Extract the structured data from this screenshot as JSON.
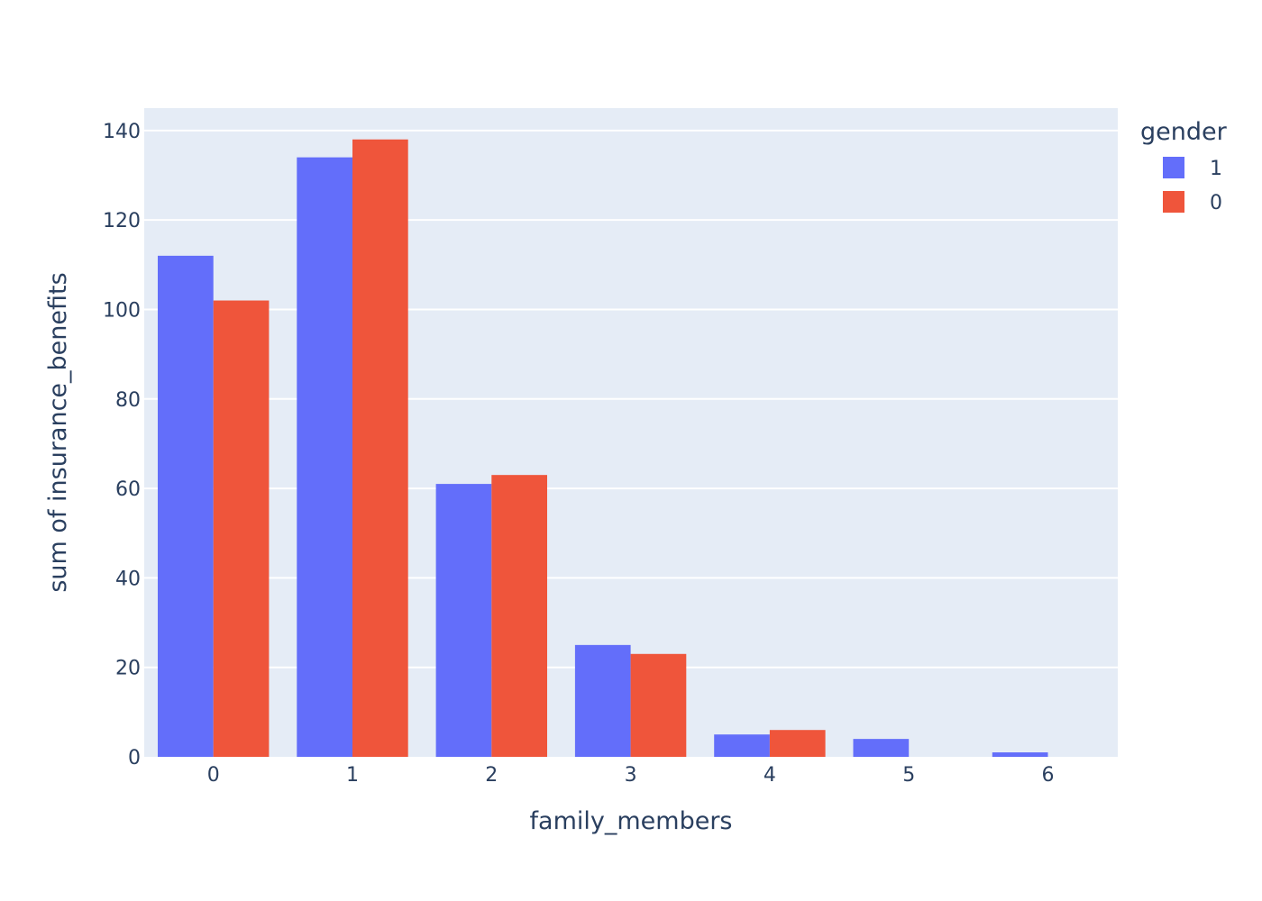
{
  "chart_data": {
    "type": "bar",
    "barmode": "group",
    "categories": [
      0,
      1,
      2,
      3,
      4,
      5,
      6
    ],
    "series": [
      {
        "name": "1",
        "color": "#636efa",
        "values": [
          112,
          134,
          61,
          25,
          5,
          4,
          1
        ]
      },
      {
        "name": "0",
        "color": "#ef553b",
        "values": [
          102,
          138,
          63,
          23,
          6,
          0,
          0
        ]
      }
    ],
    "title": "",
    "xlabel": "family_members",
    "ylabel": "sum of insurance_benefits",
    "ylim": [
      0,
      145
    ],
    "yticks": [
      0,
      20,
      40,
      60,
      80,
      100,
      120,
      140
    ],
    "grid": true,
    "plot_background": "#e5ecf6",
    "legend": {
      "title": "gender",
      "placement": "top-right"
    }
  }
}
